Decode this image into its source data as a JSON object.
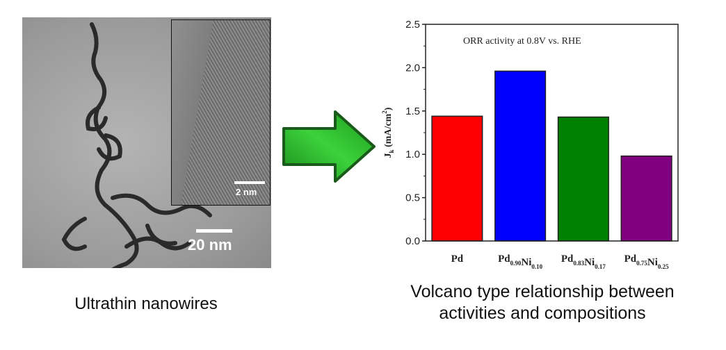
{
  "left_panel": {
    "main_scale_label": "20 nm",
    "inset_scale_label": "2 nm",
    "caption": "Ultrathin nanowires"
  },
  "right_panel": {
    "caption_line1": "Volcano type relationship between",
    "caption_line2": "activities and compositions"
  },
  "arrow": {
    "color": "#2fb82f",
    "icon": "right-arrow-icon"
  },
  "chart_data": {
    "type": "bar",
    "title": "ORR activity at 0.8V vs. RHE",
    "ylabel": "Jk (mA/cm2)",
    "ylabel_parts": {
      "main": "J",
      "sub": "k",
      "unit": "(mA/cm",
      "sup": "2",
      "close": ")"
    },
    "xlabel": "",
    "ylim": [
      0,
      2.5
    ],
    "yticks": [
      "0.0",
      "0.5",
      "1.0",
      "1.5",
      "2.0",
      "2.5"
    ],
    "categories": [
      {
        "label": "Pd",
        "parts": [
          [
            "Pd",
            ""
          ]
        ]
      },
      {
        "label": "Pd0.90Ni0.10",
        "parts": [
          [
            "Pd",
            "0.90"
          ],
          [
            "Ni",
            "0.10"
          ]
        ]
      },
      {
        "label": "Pd0.83Ni0.17",
        "parts": [
          [
            "Pd",
            "0.83"
          ],
          [
            "Ni",
            "0.17"
          ]
        ]
      },
      {
        "label": "Pd0.75Ni0.25",
        "parts": [
          [
            "Pd",
            "0.75"
          ],
          [
            "Ni",
            "0.25"
          ]
        ]
      }
    ],
    "values": [
      1.44,
      1.96,
      1.43,
      0.98
    ],
    "colors": [
      "#ff0000",
      "#0000ff",
      "#008000",
      "#800080"
    ],
    "grid": false
  }
}
